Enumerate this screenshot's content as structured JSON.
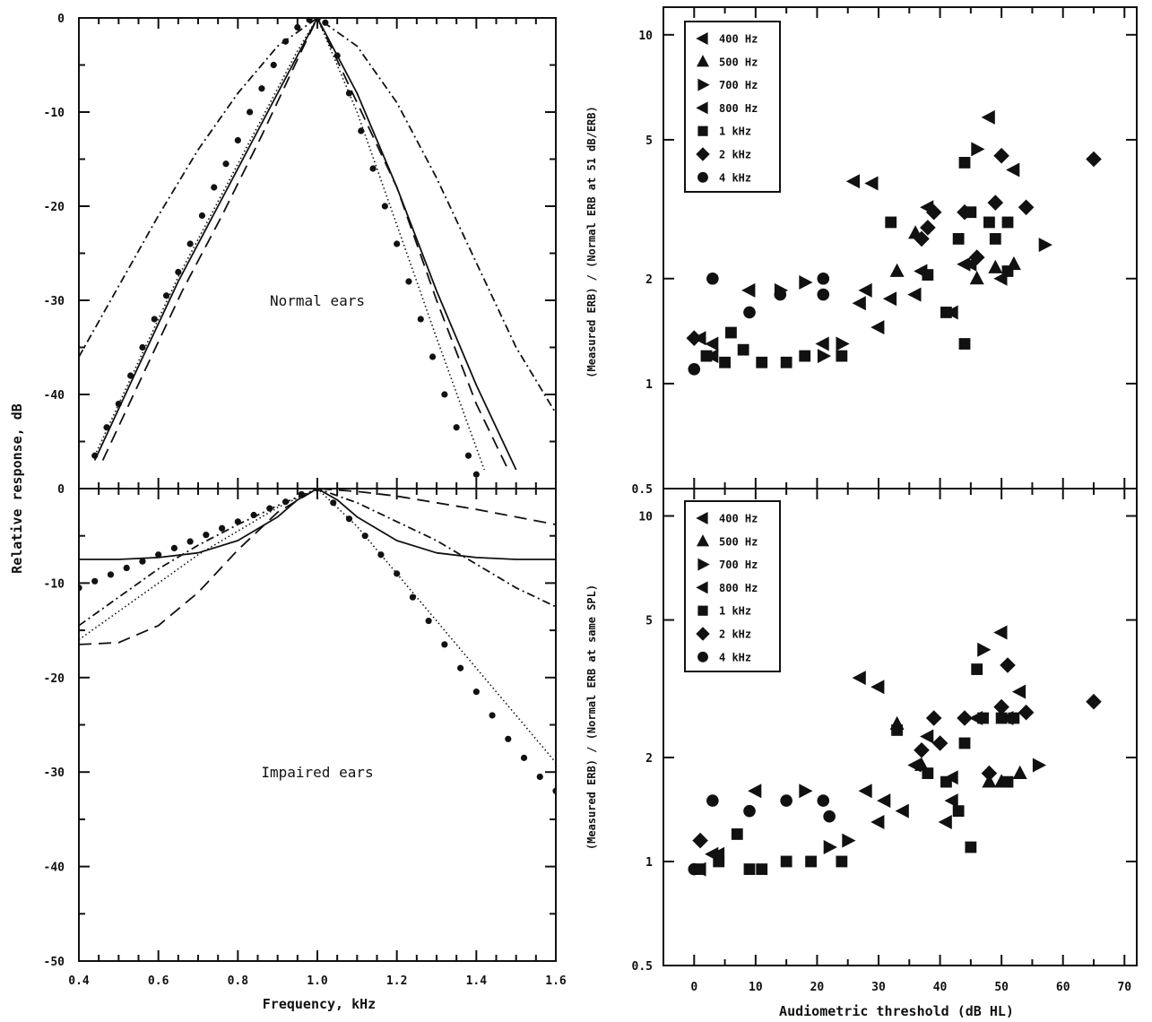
{
  "chart_data": [
    {
      "type": "line",
      "panel": "normal-ears",
      "annotation": "Normal ears",
      "xlabel": "Frequency, kHz",
      "ylabel": "Relative response, dB",
      "xlim": [
        0.4,
        1.6
      ],
      "ylim": [
        -50,
        0
      ],
      "xticks": [
        "0.4",
        "0.6",
        "0.8",
        "1.0",
        "1.2",
        "1.4",
        "1.6"
      ],
      "yticks": [
        "0",
        "-10",
        "-20",
        "-30",
        "-40"
      ],
      "grid": false,
      "series": [
        {
          "style": "dash-dot",
          "x": [
            0.4,
            0.5,
            0.6,
            0.7,
            0.8,
            0.9,
            1.0,
            1.1,
            1.2,
            1.3,
            1.4,
            1.5,
            1.6
          ],
          "y": [
            -36,
            -28.5,
            -21,
            -14,
            -8,
            -3,
            0,
            -3,
            -9,
            -17,
            -26,
            -35,
            -42
          ]
        },
        {
          "style": "solid",
          "x": [
            0.44,
            0.55,
            0.65,
            0.75,
            0.85,
            0.95,
            1.0,
            1.1,
            1.2,
            1.3,
            1.4,
            1.5
          ],
          "y": [
            -47,
            -37,
            -28,
            -20,
            -12,
            -4,
            0,
            -8,
            -18,
            -29,
            -39,
            -48
          ]
        },
        {
          "style": "dashed",
          "x": [
            0.46,
            0.56,
            0.66,
            0.76,
            0.86,
            0.96,
            1.0,
            1.1,
            1.2,
            1.3,
            1.4,
            1.48
          ],
          "y": [
            -47,
            -38,
            -29,
            -21,
            -12.5,
            -3.5,
            0,
            -9,
            -18,
            -30,
            -41,
            -48
          ]
        },
        {
          "style": "dotted",
          "x": [
            0.44,
            0.55,
            0.65,
            0.75,
            0.85,
            0.95,
            1.0,
            1.1,
            1.2,
            1.3,
            1.42
          ],
          "y": [
            -46.5,
            -36.5,
            -27.5,
            -19.5,
            -11.5,
            -3.5,
            0,
            -10,
            -22,
            -34,
            -48
          ]
        },
        {
          "style": "dot-markers",
          "x": [
            0.44,
            0.47,
            0.5,
            0.53,
            0.56,
            0.59,
            0.62,
            0.65,
            0.68,
            0.71,
            0.74,
            0.77,
            0.8,
            0.83,
            0.86,
            0.89,
            0.92,
            0.95,
            0.98,
            1.0,
            1.02,
            1.05,
            1.08,
            1.11,
            1.14,
            1.17,
            1.2,
            1.23,
            1.26,
            1.29,
            1.32,
            1.35,
            1.38,
            1.4
          ],
          "y": [
            -46.5,
            -43.5,
            -41,
            -38,
            -35,
            -32,
            -29.5,
            -27,
            -24,
            -21,
            -18,
            -15.5,
            -13,
            -10,
            -7.5,
            -5,
            -2.5,
            -1,
            -0.2,
            0,
            -0.5,
            -4,
            -8,
            -12,
            -16,
            -20,
            -24,
            -28,
            -32,
            -36,
            -40,
            -43.5,
            -46.5,
            -48.5
          ]
        }
      ]
    },
    {
      "type": "line",
      "panel": "impaired-ears",
      "annotation": "Impaired ears",
      "xlabel": "Frequency, kHz",
      "ylabel": "Relative response, dB",
      "xlim": [
        0.4,
        1.6
      ],
      "ylim": [
        -50,
        0
      ],
      "xticks": [
        "0.4",
        "0.6",
        "0.8",
        "1.0",
        "1.2",
        "1.4",
        "1.6"
      ],
      "yticks": [
        "0",
        "-10",
        "-20",
        "-30",
        "-40",
        "-50"
      ],
      "grid": false,
      "series": [
        {
          "style": "solid",
          "x": [
            0.4,
            0.5,
            0.6,
            0.7,
            0.8,
            0.9,
            0.95,
            1.0,
            1.05,
            1.1,
            1.2,
            1.3,
            1.4,
            1.5,
            1.6
          ],
          "y": [
            -7.5,
            -7.5,
            -7.3,
            -6.8,
            -5.5,
            -3,
            -1.2,
            0,
            -1.2,
            -3,
            -5.5,
            -6.8,
            -7.3,
            -7.5,
            -7.5
          ]
        },
        {
          "style": "dashed",
          "x": [
            0.4,
            0.5,
            0.6,
            0.7,
            0.8,
            0.9,
            1.0,
            1.1,
            1.2,
            1.3,
            1.4,
            1.5,
            1.6
          ],
          "y": [
            -16.5,
            -16.3,
            -14.5,
            -11,
            -6.5,
            -2.5,
            0,
            -0.3,
            -0.8,
            -1.5,
            -2.2,
            -3,
            -3.8
          ]
        },
        {
          "style": "dash-dot",
          "x": [
            0.4,
            0.5,
            0.6,
            0.7,
            0.8,
            0.9,
            1.0,
            1.1,
            1.2,
            1.3,
            1.4,
            1.5,
            1.6
          ],
          "y": [
            -14.5,
            -11.5,
            -8.5,
            -6,
            -3.8,
            -1.8,
            0,
            -1.5,
            -3.5,
            -5.5,
            -8,
            -10.5,
            -12.5
          ]
        },
        {
          "style": "dotted",
          "x": [
            0.4,
            0.5,
            0.6,
            0.7,
            0.8,
            0.9,
            1.0,
            1.1,
            1.2,
            1.3,
            1.4,
            1.5,
            1.6
          ],
          "y": [
            -16,
            -13,
            -10,
            -7,
            -4.5,
            -2,
            0,
            -4,
            -9,
            -14,
            -19,
            -24,
            -29
          ]
        },
        {
          "style": "dot-markers",
          "x": [
            0.4,
            0.44,
            0.48,
            0.52,
            0.56,
            0.6,
            0.64,
            0.68,
            0.72,
            0.76,
            0.8,
            0.84,
            0.88,
            0.92,
            0.96,
            1.0,
            1.04,
            1.08,
            1.12,
            1.16,
            1.2,
            1.24,
            1.28,
            1.32,
            1.36,
            1.4,
            1.44,
            1.48,
            1.52,
            1.56,
            1.6
          ],
          "y": [
            -10.5,
            -9.8,
            -9.1,
            -8.4,
            -7.7,
            -7,
            -6.3,
            -5.6,
            -4.9,
            -4.2,
            -3.5,
            -2.8,
            -2.1,
            -1.4,
            -0.6,
            0,
            -1.5,
            -3.2,
            -5,
            -7,
            -9,
            -11.5,
            -14,
            -16.5,
            -19,
            -21.5,
            -24,
            -26.5,
            -28.5,
            -30.5,
            -32
          ]
        }
      ]
    },
    {
      "type": "scatter",
      "panel": "ratio-51dB",
      "xlabel": "Audiometric threshold (dB HL)",
      "ylabel": "(Measured ERB) / (Normal ERB at 51 dB/ERB)",
      "xlim": [
        -5,
        72
      ],
      "ylim": [
        0.5,
        12
      ],
      "yscale": "log",
      "xticks": [
        "0",
        "10",
        "20",
        "30",
        "40",
        "50",
        "60",
        "70"
      ],
      "yticks": [
        "0.5",
        "1",
        "2",
        "5",
        "10"
      ],
      "grid": false,
      "legend_position": "top-left",
      "series": [
        {
          "name": "400 Hz",
          "marker": "triangle-left",
          "points": [
            [
              3,
              1.3
            ],
            [
              9,
              1.85
            ],
            [
              26,
              3.8
            ],
            [
              29,
              3.75
            ],
            [
              30,
              1.45
            ],
            [
              32,
              1.75
            ],
            [
              36,
              1.8
            ],
            [
              37,
              2.1
            ],
            [
              44,
              2.2
            ],
            [
              48,
              5.8
            ],
            [
              52,
              4.1
            ]
          ]
        },
        {
          "name": "500 Hz",
          "marker": "triangle-up",
          "points": [
            [
              33,
              2.1
            ],
            [
              36,
              2.7
            ],
            [
              46,
              2.0
            ],
            [
              49,
              2.15
            ],
            [
              52,
              2.2
            ]
          ]
        },
        {
          "name": "700 Hz",
          "marker": "triangle-right",
          "points": [
            [
              14,
              1.85
            ],
            [
              18,
              1.95
            ],
            [
              21,
              1.2
            ],
            [
              24,
              1.3
            ],
            [
              46,
              4.7
            ],
            [
              57,
              2.5
            ]
          ]
        },
        {
          "name": "800 Hz",
          "marker": "triangle-left",
          "points": [
            [
              1,
              1.35
            ],
            [
              3,
              1.2
            ],
            [
              21,
              1.3
            ],
            [
              27,
              1.7
            ],
            [
              28,
              1.85
            ],
            [
              38,
              3.2
            ],
            [
              42,
              1.6
            ],
            [
              45,
              2.2
            ],
            [
              50,
              2.0
            ]
          ]
        },
        {
          "name": "1 kHz",
          "marker": "square",
          "points": [
            [
              2,
              1.2
            ],
            [
              5,
              1.15
            ],
            [
              6,
              1.4
            ],
            [
              8,
              1.25
            ],
            [
              11,
              1.15
            ],
            [
              15,
              1.15
            ],
            [
              18,
              1.2
            ],
            [
              24,
              1.2
            ],
            [
              32,
              2.9
            ],
            [
              38,
              2.05
            ],
            [
              41,
              1.6
            ],
            [
              43,
              2.6
            ],
            [
              44,
              1.3
            ],
            [
              44,
              4.3
            ],
            [
              45,
              3.1
            ],
            [
              48,
              2.9
            ],
            [
              49,
              2.6
            ],
            [
              51,
              2.1
            ],
            [
              51,
              2.9
            ]
          ]
        },
        {
          "name": "2 kHz",
          "marker": "diamond",
          "points": [
            [
              0,
              1.35
            ],
            [
              37,
              2.6
            ],
            [
              38,
              2.8
            ],
            [
              39,
              3.1
            ],
            [
              44,
              3.1
            ],
            [
              46,
              2.3
            ],
            [
              49,
              3.3
            ],
            [
              50,
              4.5
            ],
            [
              54,
              3.2
            ],
            [
              65,
              4.4
            ]
          ]
        },
        {
          "name": "4 kHz",
          "marker": "circle",
          "points": [
            [
              0,
              1.1
            ],
            [
              3,
              2.0
            ],
            [
              9,
              1.6
            ],
            [
              14,
              1.8
            ],
            [
              21,
              1.8
            ],
            [
              21,
              2.0
            ]
          ]
        }
      ]
    },
    {
      "type": "scatter",
      "panel": "ratio-same-spl",
      "xlabel": "Audiometric threshold (dB HL)",
      "ylabel": "(Measured ERB) / (Normal ERB at same SPL)",
      "xlim": [
        -5,
        72
      ],
      "ylim": [
        0.5,
        12
      ],
      "yscale": "log",
      "xticks": [
        "0",
        "10",
        "20",
        "30",
        "40",
        "50",
        "60",
        "70"
      ],
      "yticks": [
        "0.5",
        "1",
        "2",
        "5",
        "10"
      ],
      "grid": false,
      "legend_position": "top-left",
      "series": [
        {
          "name": "400 Hz",
          "marker": "triangle-left",
          "points": [
            [
              4,
              1.05
            ],
            [
              10,
              1.6
            ],
            [
              27,
              3.4
            ],
            [
              30,
              3.2
            ],
            [
              30,
              1.3
            ],
            [
              34,
              1.4
            ],
            [
              36,
              1.9
            ],
            [
              41,
              1.3
            ],
            [
              42,
              1.75
            ],
            [
              50,
              4.6
            ],
            [
              53,
              3.1
            ]
          ]
        },
        {
          "name": "500 Hz",
          "marker": "triangle-up",
          "points": [
            [
              33,
              2.5
            ],
            [
              37,
              1.9
            ],
            [
              48,
              1.7
            ],
            [
              50,
              1.7
            ],
            [
              53,
              1.8
            ]
          ]
        },
        {
          "name": "700 Hz",
          "marker": "triangle-right",
          "points": [
            [
              18,
              1.6
            ],
            [
              22,
              1.1
            ],
            [
              25,
              1.15
            ],
            [
              47,
              4.1
            ],
            [
              56,
              1.9
            ]
          ]
        },
        {
          "name": "800 Hz",
          "marker": "triangle-left",
          "points": [
            [
              1,
              0.95
            ],
            [
              3,
              1.05
            ],
            [
              28,
              1.6
            ],
            [
              31,
              1.5
            ],
            [
              38,
              2.3
            ],
            [
              42,
              1.5
            ],
            [
              46,
              2.6
            ],
            [
              51,
              2.6
            ]
          ]
        },
        {
          "name": "1 kHz",
          "marker": "square",
          "points": [
            [
              1,
              0.95
            ],
            [
              4,
              1.0
            ],
            [
              7,
              1.2
            ],
            [
              9,
              0.95
            ],
            [
              11,
              0.95
            ],
            [
              15,
              1.0
            ],
            [
              19,
              1.0
            ],
            [
              24,
              1.0
            ],
            [
              33,
              2.4
            ],
            [
              38,
              1.8
            ],
            [
              41,
              1.7
            ],
            [
              43,
              1.4
            ],
            [
              44,
              2.2
            ],
            [
              45,
              1.1
            ],
            [
              46,
              3.6
            ],
            [
              47,
              2.6
            ],
            [
              50,
              2.6
            ],
            [
              51,
              1.7
            ],
            [
              52,
              2.6
            ]
          ]
        },
        {
          "name": "2 kHz",
          "marker": "diamond",
          "points": [
            [
              1,
              1.15
            ],
            [
              37,
              2.1
            ],
            [
              39,
              2.6
            ],
            [
              40,
              2.2
            ],
            [
              44,
              2.6
            ],
            [
              48,
              1.8
            ],
            [
              50,
              2.8
            ],
            [
              51,
              3.7
            ],
            [
              54,
              2.7
            ],
            [
              65,
              2.9
            ]
          ]
        },
        {
          "name": "4 kHz",
          "marker": "circle",
          "points": [
            [
              0,
              0.95
            ],
            [
              3,
              1.5
            ],
            [
              9,
              1.4
            ],
            [
              15,
              1.5
            ],
            [
              21,
              1.5
            ],
            [
              22,
              1.35
            ]
          ]
        }
      ]
    }
  ]
}
